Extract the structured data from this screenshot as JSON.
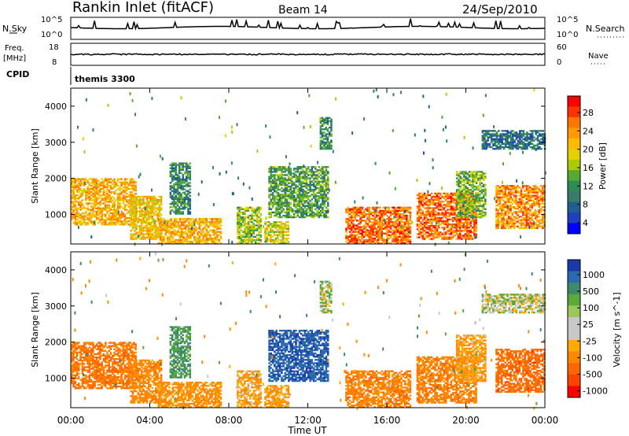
{
  "header": {
    "title": "Rankin Inlet (fitACF)",
    "beam": "Beam 14",
    "date": "24/Sep/2010"
  },
  "summary_panels": {
    "nsky_label": "N.Sky",
    "nsky_ticks": [
      "10^5",
      "10^0"
    ],
    "nsearch_label": "N.Search",
    "nsearch_ticks": [
      "10^5",
      "10^0"
    ],
    "freq_label": "Freq.",
    "freq_unit": "[MHz]",
    "freq_ticks": [
      "18",
      "8"
    ],
    "nave_label": "Nave",
    "nave_ticks": [
      "60",
      "0"
    ],
    "cpid_label": "CPID",
    "cpid_value": "themis 3300"
  },
  "panels": {
    "power": {
      "ylabel": "Slant Range [km]",
      "colorbar_label": "Power [dB]",
      "colorbar_ticks": [
        "28",
        "24",
        "20",
        "16",
        "12",
        "8",
        "4"
      ],
      "colorbar_colors": [
        "#ff0000",
        "#ff3300",
        "#ff7700",
        "#ff9900",
        "#ffbb00",
        "#e8d000",
        "#aacc00",
        "#55aa33",
        "#2e8b57",
        "#3a7a6a",
        "#1f5f8f",
        "#1f3fbf",
        "#0000ff"
      ]
    },
    "velocity": {
      "ylabel": "Slant Range [km]",
      "colorbar_label": "Velocity [m s^-1]",
      "colorbar_ticks": [
        "1000",
        "500",
        "100",
        "25",
        "-25",
        "-100",
        "-500",
        "-1000"
      ],
      "colorbar_colors": [
        "#1a3aaa",
        "#2a6bb0",
        "#3b8a6a",
        "#5aaa3a",
        "#9ac85a",
        "#c8c8c8",
        "#c8c8c8",
        "#ffaa00",
        "#ff8800",
        "#ff6600",
        "#ff4400",
        "#ff0000"
      ]
    }
  },
  "x_axis": {
    "label": "Time UT",
    "ticks": [
      "00:00",
      "04:00",
      "08:00",
      "12:00",
      "16:00",
      "20:00",
      "00:00"
    ]
  },
  "chart_data": {
    "type": "heatmap",
    "title": "Rankin Inlet (fitACF)",
    "subtitle": "Beam 14",
    "date": "24/Sep/2010",
    "xlabel": "Time UT",
    "ylabel": "Slant Range [km]",
    "xlim_hours": [
      0,
      24
    ],
    "ylim_km": [
      180,
      4500
    ],
    "y_ticks": [
      1000,
      2000,
      3000,
      4000
    ],
    "x_ticks": [
      "00:00",
      "04:00",
      "08:00",
      "12:00",
      "16:00",
      "20:00",
      "00:00"
    ],
    "echo_regions": [
      {
        "t0": 0.0,
        "t1": 3.3,
        "r0": 700,
        "r1": 2000,
        "power": 22,
        "vel": -300
      },
      {
        "t0": 3.0,
        "t1": 4.6,
        "r0": 300,
        "r1": 1500,
        "power": 20,
        "vel": -200
      },
      {
        "t0": 4.4,
        "t1": 7.6,
        "r0": 180,
        "r1": 900,
        "power": 22,
        "vel": -150
      },
      {
        "t0": 5.0,
        "t1": 6.0,
        "r0": 1000,
        "r1": 2400,
        "power": 10,
        "vel": 100
      },
      {
        "t0": 8.4,
        "t1": 9.6,
        "r0": 180,
        "r1": 1200,
        "power": 16,
        "vel": -80
      },
      {
        "t0": 9.8,
        "t1": 11.0,
        "r0": 180,
        "r1": 800,
        "power": 18,
        "vel": -100
      },
      {
        "t0": 10.0,
        "t1": 13.0,
        "r0": 900,
        "r1": 2300,
        "power": 12,
        "vel": 600
      },
      {
        "t0": 12.6,
        "t1": 13.2,
        "r0": 2800,
        "r1": 3700,
        "power": 10,
        "vel": 20
      },
      {
        "t0": 13.9,
        "t1": 17.2,
        "r0": 180,
        "r1": 1200,
        "power": 26,
        "vel": -250
      },
      {
        "t0": 17.5,
        "t1": 20.5,
        "r0": 300,
        "r1": 1600,
        "power": 26,
        "vel": -250
      },
      {
        "t0": 19.5,
        "t1": 21.0,
        "r0": 900,
        "r1": 2200,
        "power": 14,
        "vel": -100
      },
      {
        "t0": 21.5,
        "t1": 24.0,
        "r0": 600,
        "r1": 1800,
        "power": 24,
        "vel": -400
      },
      {
        "t0": 20.8,
        "t1": 24.0,
        "r0": 2800,
        "r1": 3300,
        "power": 8,
        "vel": 10
      }
    ]
  }
}
